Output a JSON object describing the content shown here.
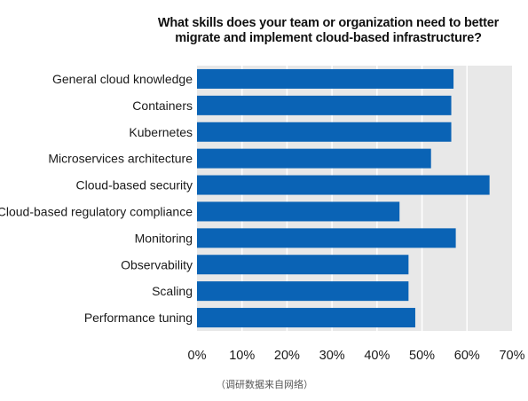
{
  "chart_data": {
    "type": "bar",
    "orientation": "horizontal",
    "title_lines": [
      "What skills does your team or organization need to better",
      "migrate and implement cloud-based infrastructure?"
    ],
    "categories": [
      "General cloud knowledge",
      "Containers",
      "Kubernetes",
      "Microservices architecture",
      "Cloud-based security",
      "Cloud-based regulatory compliance",
      "Monitoring",
      "Observability",
      "Scaling",
      "Performance tuning"
    ],
    "values": [
      57,
      56.5,
      56.5,
      52,
      65,
      45,
      57.5,
      47,
      47,
      48.5
    ],
    "xlim": [
      0,
      70
    ],
    "x_ticks": [
      0,
      10,
      20,
      30,
      40,
      50,
      60,
      70
    ],
    "x_tick_labels": [
      "0%",
      "10%",
      "20%",
      "30%",
      "40%",
      "50%",
      "60%",
      "70%"
    ],
    "bar_color": "#0a63b5",
    "plot_background": "#e8e8e8",
    "gridline_color": "#ffffff",
    "grid": true
  },
  "source_note": "（调研数据来自网络）"
}
